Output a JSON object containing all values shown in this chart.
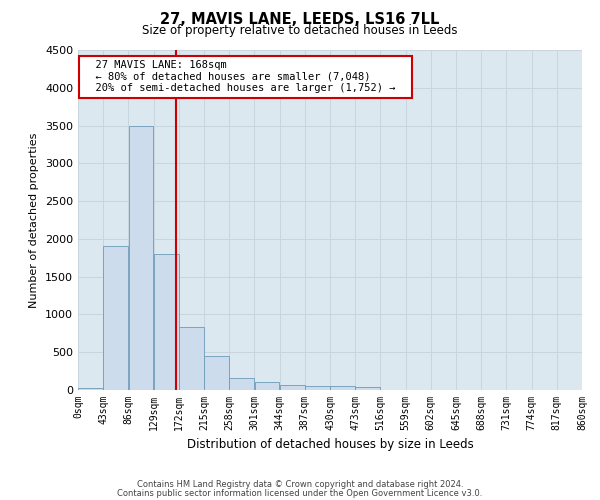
{
  "title": "27, MAVIS LANE, LEEDS, LS16 7LL",
  "subtitle": "Size of property relative to detached houses in Leeds",
  "xlabel": "Distribution of detached houses by size in Leeds",
  "ylabel": "Number of detached properties",
  "annotation_line1": "27 MAVIS LANE: 168sqm",
  "annotation_line2": "← 80% of detached houses are smaller (7,048)",
  "annotation_line3": "20% of semi-detached houses are larger (1,752) →",
  "footer_line1": "Contains HM Land Registry data © Crown copyright and database right 2024.",
  "footer_line2": "Contains public sector information licensed under the Open Government Licence v3.0.",
  "bin_edges": [
    0,
    43,
    86,
    129,
    172,
    215,
    258,
    301,
    344,
    387,
    430,
    473,
    516,
    559,
    602,
    645,
    688,
    731,
    774,
    817,
    860
  ],
  "bin_counts": [
    30,
    1900,
    3500,
    1800,
    830,
    450,
    160,
    100,
    70,
    55,
    50,
    45,
    0,
    0,
    0,
    0,
    0,
    0,
    0,
    0
  ],
  "bar_color": "#ccdcec",
  "bar_edge_color": "#6b9ab8",
  "vline_color": "#cc0000",
  "vline_x": 168,
  "ylim": [
    0,
    4500
  ],
  "yticks": [
    0,
    500,
    1000,
    1500,
    2000,
    2500,
    3000,
    3500,
    4000,
    4500
  ],
  "grid_color": "#c8d4de",
  "annotation_box_color": "#cc0000",
  "background_color": "#ffffff",
  "plot_background": "#dce8f0"
}
